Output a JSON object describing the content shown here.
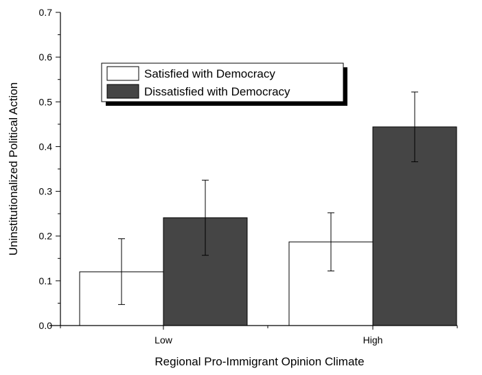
{
  "chart_data": {
    "type": "bar",
    "title": "",
    "xlabel": "Regional Pro-Immigrant Opinion Climate",
    "ylabel": "Uninstitutionalized Political Action",
    "categories": [
      "Low",
      "High"
    ],
    "ylim": [
      0,
      0.7
    ],
    "yticks": [
      "0.0",
      "0.1",
      "0.2",
      "0.3",
      "0.4",
      "0.5",
      "0.6",
      "0.7"
    ],
    "grid": false,
    "legend_position": "top-left",
    "series": [
      {
        "name": "Satisfied with Democracy",
        "color": "#ffffff",
        "values": [
          0.12,
          0.187
        ],
        "error_low": [
          0.047,
          0.122
        ],
        "error_high": [
          0.194,
          0.252
        ]
      },
      {
        "name": "Dissatisfied with Democracy",
        "color": "#454545",
        "values": [
          0.241,
          0.444
        ],
        "error_low": [
          0.157,
          0.366
        ],
        "error_high": [
          0.325,
          0.522
        ]
      }
    ]
  }
}
